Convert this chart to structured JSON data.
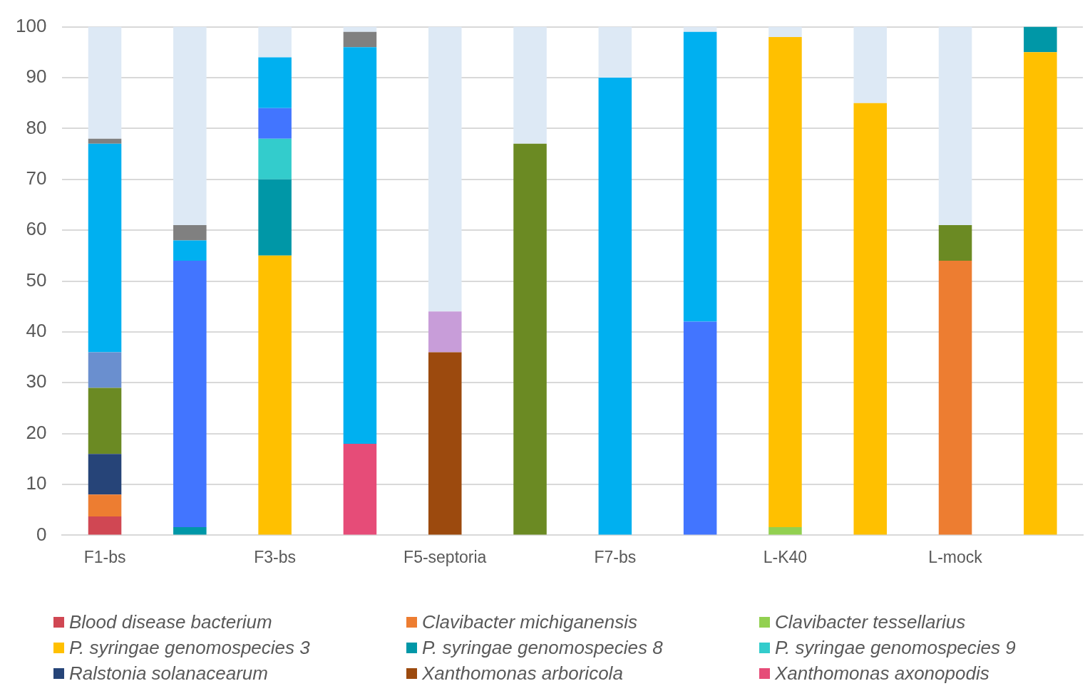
{
  "chart_data": {
    "type": "bar",
    "stacked": true,
    "categories": [
      "F1-bs",
      null,
      "F3-bs",
      null,
      "F5-septoria",
      null,
      "F7-bs",
      null,
      "L-K40",
      null,
      "L-mock",
      null
    ],
    "ylim": [
      0,
      100
    ],
    "yticks": [
      0,
      10,
      20,
      30,
      40,
      50,
      60,
      70,
      80,
      90,
      100
    ],
    "grid": "y",
    "legend": "bottom",
    "series": [
      {
        "name": "Blood disease bacterium",
        "color": "#d04753",
        "values": [
          3.7,
          0,
          0,
          0,
          0,
          0,
          0,
          0,
          0,
          0,
          0,
          0
        ]
      },
      {
        "name": "Clavibacter michiganensis",
        "color": "#ed7d31",
        "values": [
          4.3,
          0,
          0,
          0,
          0,
          0,
          0,
          0,
          0,
          0,
          54,
          0
        ]
      },
      {
        "name": "Clavibacter tessellarius",
        "color": "#92d050",
        "values": [
          0,
          0,
          0,
          0,
          0,
          0,
          0,
          0,
          1.6,
          0,
          0,
          0
        ]
      },
      {
        "name": "P. syringae genomospecies 3",
        "color": "#ffc000",
        "values": [
          0,
          0,
          55,
          0,
          0,
          0,
          0,
          0,
          96.4,
          85,
          0,
          95
        ]
      },
      {
        "name": "P. syringae genomospecies 8",
        "color": "#0097a7",
        "values": [
          0,
          1.6,
          15,
          0,
          0,
          0,
          0,
          0,
          0,
          0,
          0,
          5
        ]
      },
      {
        "name": "P. syringae genomospecies 9",
        "color": "#33cccc",
        "values": [
          0,
          0,
          8,
          0,
          0,
          0,
          0,
          0,
          0,
          0,
          0,
          0
        ]
      },
      {
        "name": "Ralstonia solanacearum",
        "color": "#264478",
        "values": [
          8,
          0,
          0,
          0,
          0,
          0,
          0,
          0,
          0,
          0,
          0,
          0
        ]
      },
      {
        "name": "Xanthomonas arboricola",
        "color": "#9c4a0e",
        "values": [
          0,
          0,
          0,
          0,
          36,
          0,
          0,
          0,
          0,
          0,
          0,
          0
        ]
      },
      {
        "name": "Xanthomonas axonopodis",
        "color": "#e64c78",
        "values": [
          0,
          0,
          0,
          18,
          0,
          0,
          0,
          0,
          0,
          0,
          0,
          0
        ]
      },
      {
        "color": "#6b8a23",
        "values": [
          13,
          0,
          0,
          0,
          0,
          77,
          0,
          0,
          0,
          0,
          7,
          0
        ]
      },
      {
        "color": "#6a8fcf",
        "values": [
          7,
          0,
          0,
          0,
          0,
          0,
          0,
          0,
          0,
          0,
          0,
          0
        ]
      },
      {
        "color": "#4275ff",
        "values": [
          0,
          52.4,
          6,
          0,
          0,
          0,
          0,
          42,
          0,
          0,
          0,
          0
        ]
      },
      {
        "color": "#c89dd9",
        "values": [
          0,
          0,
          0,
          0,
          8,
          0,
          0,
          0,
          0,
          0,
          0,
          0
        ]
      },
      {
        "color": "#00b0f0",
        "values": [
          41,
          4,
          10,
          78,
          0,
          0,
          90,
          57,
          0,
          0,
          0,
          0
        ]
      },
      {
        "color": "#808080",
        "values": [
          1,
          3,
          0,
          3,
          0,
          0,
          0,
          0,
          0,
          0,
          0,
          0
        ]
      },
      {
        "color": "#dde9f5",
        "values": [
          22,
          39,
          6,
          1,
          56,
          23,
          10,
          1,
          2,
          15,
          39,
          0
        ]
      }
    ]
  }
}
